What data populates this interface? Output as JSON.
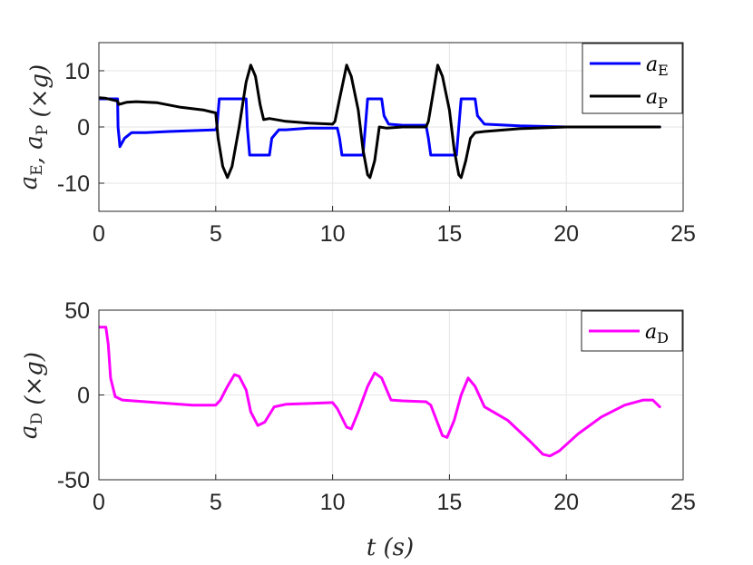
{
  "chart_data": [
    {
      "type": "line",
      "ylabel": "a_E, a_P (×g)",
      "xlabel": "",
      "xlim": [
        0,
        25
      ],
      "ylim": [
        -15,
        15
      ],
      "xticks": [
        0,
        5,
        10,
        15,
        20,
        25
      ],
      "xtick_labels": [
        "0",
        "5",
        "10",
        "15",
        "20",
        "25"
      ],
      "yticks": [
        10,
        0,
        -10
      ],
      "ytick_labels": [
        "10",
        "0",
        "-10"
      ],
      "grid": true,
      "legend_position": "top-right",
      "series": [
        {
          "name": "a_E",
          "color": "#0000ff",
          "points": [
            [
              0,
              5
            ],
            [
              0.8,
              5
            ],
            [
              0.82,
              0
            ],
            [
              0.9,
              -3.5
            ],
            [
              1.1,
              -2
            ],
            [
              1.4,
              -1
            ],
            [
              2,
              -1
            ],
            [
              3,
              -0.8
            ],
            [
              5,
              -0.5
            ],
            [
              5.05,
              0
            ],
            [
              5.15,
              5
            ],
            [
              6.3,
              5
            ],
            [
              6.35,
              0
            ],
            [
              6.45,
              -5
            ],
            [
              7.3,
              -5
            ],
            [
              7.4,
              -2
            ],
            [
              7.7,
              -0.5
            ],
            [
              8,
              -0.5
            ],
            [
              9,
              -0.2
            ],
            [
              10.2,
              -0.2
            ],
            [
              10.3,
              -2
            ],
            [
              10.4,
              -5
            ],
            [
              11.3,
              -5
            ],
            [
              11.4,
              0
            ],
            [
              11.5,
              5
            ],
            [
              12.1,
              5
            ],
            [
              12.2,
              2
            ],
            [
              12.4,
              0.5
            ],
            [
              13,
              0.3
            ],
            [
              14,
              0.3
            ],
            [
              14.1,
              -2
            ],
            [
              14.2,
              -5
            ],
            [
              15.3,
              -5
            ],
            [
              15.4,
              0
            ],
            [
              15.5,
              5
            ],
            [
              16.1,
              5
            ],
            [
              16.2,
              2
            ],
            [
              16.5,
              0.5
            ],
            [
              18,
              0.2
            ],
            [
              20,
              0
            ],
            [
              24,
              0
            ]
          ]
        },
        {
          "name": "a_P",
          "color": "#000000",
          "points": [
            [
              0,
              5.2
            ],
            [
              0.3,
              5.1
            ],
            [
              0.8,
              4.6
            ],
            [
              0.85,
              4
            ],
            [
              1.2,
              4.4
            ],
            [
              1.6,
              4.5
            ],
            [
              2.5,
              4.3
            ],
            [
              3.5,
              3.5
            ],
            [
              4.5,
              3
            ],
            [
              5,
              2.5
            ],
            [
              5.1,
              -2
            ],
            [
              5.3,
              -7
            ],
            [
              5.5,
              -9
            ],
            [
              5.7,
              -7
            ],
            [
              6,
              0
            ],
            [
              6.3,
              8
            ],
            [
              6.5,
              11
            ],
            [
              6.7,
              9
            ],
            [
              6.9,
              4
            ],
            [
              7.05,
              1.3
            ],
            [
              7.3,
              1.5
            ],
            [
              8,
              1
            ],
            [
              9,
              0.7
            ],
            [
              10,
              0.5
            ],
            [
              10.1,
              1
            ],
            [
              10.3,
              5
            ],
            [
              10.6,
              11
            ],
            [
              10.8,
              9
            ],
            [
              11.1,
              3
            ],
            [
              11.3,
              -4
            ],
            [
              11.5,
              -8.5
            ],
            [
              11.6,
              -9
            ],
            [
              11.8,
              -6
            ],
            [
              12,
              0
            ],
            [
              12.3,
              -0.2
            ],
            [
              13,
              0
            ],
            [
              14,
              0
            ],
            [
              14.1,
              1
            ],
            [
              14.3,
              6
            ],
            [
              14.5,
              11
            ],
            [
              14.7,
              9
            ],
            [
              15,
              3
            ],
            [
              15.2,
              -4
            ],
            [
              15.4,
              -8.5
            ],
            [
              15.5,
              -9
            ],
            [
              15.7,
              -6
            ],
            [
              15.9,
              -2
            ],
            [
              16.1,
              -1
            ],
            [
              16.5,
              -0.8
            ],
            [
              18,
              -0.3
            ],
            [
              20,
              0
            ],
            [
              24,
              0
            ]
          ]
        }
      ]
    },
    {
      "type": "line",
      "ylabel": "a_D (×g)",
      "xlabel": "t (s)",
      "xlim": [
        0,
        25
      ],
      "ylim": [
        -50,
        50
      ],
      "xticks": [
        0,
        5,
        10,
        15,
        20,
        25
      ],
      "xtick_labels": [
        "0",
        "5",
        "10",
        "15",
        "20",
        "25"
      ],
      "yticks": [
        50,
        0,
        -50
      ],
      "ytick_labels": [
        "50",
        "0",
        "-50"
      ],
      "grid": true,
      "legend_position": "top-right",
      "series": [
        {
          "name": "a_D",
          "color": "#ff00ff",
          "points": [
            [
              0,
              40
            ],
            [
              0.3,
              40
            ],
            [
              0.4,
              30
            ],
            [
              0.5,
              10
            ],
            [
              0.7,
              -1
            ],
            [
              1,
              -3
            ],
            [
              2,
              -4
            ],
            [
              3,
              -5
            ],
            [
              4,
              -6
            ],
            [
              5,
              -6
            ],
            [
              5.2,
              -3
            ],
            [
              5.5,
              5
            ],
            [
              5.8,
              12
            ],
            [
              6,
              11
            ],
            [
              6.3,
              3
            ],
            [
              6.5,
              -10
            ],
            [
              6.8,
              -18
            ],
            [
              7.1,
              -16
            ],
            [
              7.5,
              -7
            ],
            [
              8,
              -5.5
            ],
            [
              9,
              -5
            ],
            [
              10,
              -4.5
            ],
            [
              10.2,
              -8
            ],
            [
              10.6,
              -19
            ],
            [
              10.8,
              -20
            ],
            [
              11.1,
              -10
            ],
            [
              11.5,
              5
            ],
            [
              11.8,
              13
            ],
            [
              12.1,
              10
            ],
            [
              12.5,
              -3
            ],
            [
              13,
              -3.5
            ],
            [
              14,
              -4
            ],
            [
              14.2,
              -6
            ],
            [
              14.7,
              -24
            ],
            [
              14.9,
              -25
            ],
            [
              15.2,
              -15
            ],
            [
              15.5,
              0
            ],
            [
              15.8,
              10
            ],
            [
              16.1,
              5
            ],
            [
              16.5,
              -7
            ],
            [
              17.5,
              -15
            ],
            [
              18.5,
              -28
            ],
            [
              19,
              -35
            ],
            [
              19.3,
              -36
            ],
            [
              19.7,
              -33
            ],
            [
              20.5,
              -23
            ],
            [
              21.5,
              -13
            ],
            [
              22.5,
              -6
            ],
            [
              23.3,
              -3
            ],
            [
              23.7,
              -3
            ],
            [
              24,
              -7
            ]
          ]
        }
      ]
    }
  ]
}
